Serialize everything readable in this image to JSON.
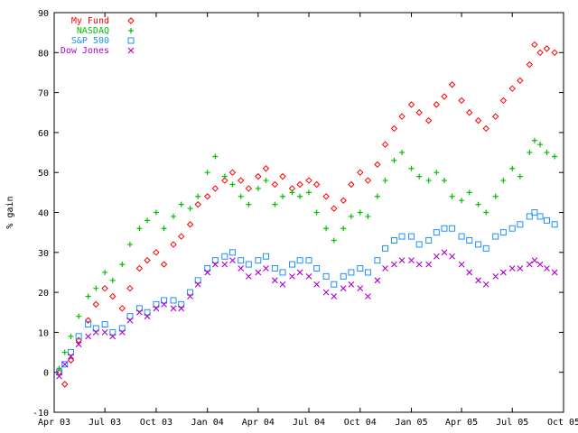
{
  "chart_data": {
    "type": "scatter",
    "ylabel": "% gain",
    "xlabel": "",
    "title": "",
    "ylim": [
      -10,
      90
    ],
    "xlim": [
      "2003-04-01",
      "2005-10-01"
    ],
    "y_ticks": [
      -10,
      0,
      10,
      20,
      30,
      40,
      50,
      60,
      70,
      80,
      90
    ],
    "x_ticks": [
      {
        "date": "2003-04-01",
        "label": "Apr 03"
      },
      {
        "date": "2003-07-01",
        "label": "Jul 03"
      },
      {
        "date": "2003-10-01",
        "label": "Oct 03"
      },
      {
        "date": "2004-01-01",
        "label": "Jan 04"
      },
      {
        "date": "2004-04-01",
        "label": "Apr 04"
      },
      {
        "date": "2004-07-01",
        "label": "Jul 04"
      },
      {
        "date": "2004-10-01",
        "label": "Oct 04"
      },
      {
        "date": "2005-01-01",
        "label": "Jan 05"
      },
      {
        "date": "2005-04-01",
        "label": "Apr 05"
      },
      {
        "date": "2005-07-01",
        "label": "Jul 05"
      },
      {
        "date": "2005-10-01",
        "label": "Oct 05"
      }
    ],
    "grid": false,
    "legend_position": "top-left",
    "series": [
      {
        "name": "My Fund",
        "color": "#ff0000",
        "marker": "diamond",
        "points": [
          [
            "2003-04-10",
            0
          ],
          [
            "2003-04-20",
            -3
          ],
          [
            "2003-05-01",
            3
          ],
          [
            "2003-05-15",
            8
          ],
          [
            "2003-06-01",
            13
          ],
          [
            "2003-06-15",
            17
          ],
          [
            "2003-07-01",
            21
          ],
          [
            "2003-07-15",
            19
          ],
          [
            "2003-08-01",
            16
          ],
          [
            "2003-08-15",
            21
          ],
          [
            "2003-09-01",
            26
          ],
          [
            "2003-09-15",
            28
          ],
          [
            "2003-10-01",
            30
          ],
          [
            "2003-10-15",
            27
          ],
          [
            "2003-11-01",
            32
          ],
          [
            "2003-11-15",
            34
          ],
          [
            "2003-12-01",
            37
          ],
          [
            "2003-12-15",
            42
          ],
          [
            "2004-01-01",
            44
          ],
          [
            "2004-01-15",
            46
          ],
          [
            "2004-02-01",
            48
          ],
          [
            "2004-02-15",
            50
          ],
          [
            "2004-03-01",
            48
          ],
          [
            "2004-03-15",
            46
          ],
          [
            "2004-04-01",
            49
          ],
          [
            "2004-04-15",
            51
          ],
          [
            "2004-05-01",
            47
          ],
          [
            "2004-05-15",
            49
          ],
          [
            "2004-06-01",
            46
          ],
          [
            "2004-06-15",
            47
          ],
          [
            "2004-07-01",
            48
          ],
          [
            "2004-07-15",
            47
          ],
          [
            "2004-08-01",
            44
          ],
          [
            "2004-08-15",
            41
          ],
          [
            "2004-09-01",
            43
          ],
          [
            "2004-09-15",
            47
          ],
          [
            "2004-10-01",
            50
          ],
          [
            "2004-10-15",
            48
          ],
          [
            "2004-11-01",
            52
          ],
          [
            "2004-11-15",
            57
          ],
          [
            "2004-12-01",
            61
          ],
          [
            "2004-12-15",
            64
          ],
          [
            "2005-01-01",
            67
          ],
          [
            "2005-01-15",
            65
          ],
          [
            "2005-02-01",
            63
          ],
          [
            "2005-02-15",
            67
          ],
          [
            "2005-03-01",
            69
          ],
          [
            "2005-03-15",
            72
          ],
          [
            "2005-04-01",
            68
          ],
          [
            "2005-04-15",
            65
          ],
          [
            "2005-05-01",
            63
          ],
          [
            "2005-05-15",
            61
          ],
          [
            "2005-06-01",
            64
          ],
          [
            "2005-06-15",
            68
          ],
          [
            "2005-07-01",
            71
          ],
          [
            "2005-07-15",
            73
          ],
          [
            "2005-08-01",
            77
          ],
          [
            "2005-08-10",
            82
          ],
          [
            "2005-08-20",
            80
          ],
          [
            "2005-09-01",
            81
          ],
          [
            "2005-09-15",
            80
          ]
        ]
      },
      {
        "name": "NASDAQ",
        "color": "#00c000",
        "marker": "plus",
        "points": [
          [
            "2003-04-10",
            1
          ],
          [
            "2003-04-20",
            5
          ],
          [
            "2003-05-01",
            9
          ],
          [
            "2003-05-15",
            14
          ],
          [
            "2003-06-01",
            19
          ],
          [
            "2003-06-15",
            21
          ],
          [
            "2003-07-01",
            25
          ],
          [
            "2003-07-15",
            23
          ],
          [
            "2003-08-01",
            27
          ],
          [
            "2003-08-15",
            32
          ],
          [
            "2003-09-01",
            36
          ],
          [
            "2003-09-15",
            38
          ],
          [
            "2003-10-01",
            40
          ],
          [
            "2003-10-15",
            36
          ],
          [
            "2003-11-01",
            39
          ],
          [
            "2003-11-15",
            42
          ],
          [
            "2003-12-01",
            41
          ],
          [
            "2003-12-15",
            44
          ],
          [
            "2004-01-01",
            50
          ],
          [
            "2004-01-15",
            54
          ],
          [
            "2004-02-01",
            49
          ],
          [
            "2004-02-15",
            47
          ],
          [
            "2004-03-01",
            44
          ],
          [
            "2004-03-15",
            42
          ],
          [
            "2004-04-01",
            46
          ],
          [
            "2004-04-15",
            48
          ],
          [
            "2004-05-01",
            42
          ],
          [
            "2004-05-15",
            44
          ],
          [
            "2004-06-01",
            45
          ],
          [
            "2004-06-15",
            44
          ],
          [
            "2004-07-01",
            45
          ],
          [
            "2004-07-15",
            40
          ],
          [
            "2004-08-01",
            36
          ],
          [
            "2004-08-15",
            33
          ],
          [
            "2004-09-01",
            36
          ],
          [
            "2004-09-15",
            39
          ],
          [
            "2004-10-01",
            40
          ],
          [
            "2004-10-15",
            39
          ],
          [
            "2004-11-01",
            44
          ],
          [
            "2004-11-15",
            48
          ],
          [
            "2004-12-01",
            53
          ],
          [
            "2004-12-15",
            55
          ],
          [
            "2005-01-01",
            51
          ],
          [
            "2005-01-15",
            49
          ],
          [
            "2005-02-01",
            48
          ],
          [
            "2005-02-15",
            50
          ],
          [
            "2005-03-01",
            48
          ],
          [
            "2005-03-15",
            44
          ],
          [
            "2005-04-01",
            43
          ],
          [
            "2005-04-15",
            45
          ],
          [
            "2005-05-01",
            42
          ],
          [
            "2005-05-15",
            40
          ],
          [
            "2005-06-01",
            44
          ],
          [
            "2005-06-15",
            48
          ],
          [
            "2005-07-01",
            51
          ],
          [
            "2005-07-15",
            49
          ],
          [
            "2005-08-01",
            55
          ],
          [
            "2005-08-10",
            58
          ],
          [
            "2005-08-20",
            57
          ],
          [
            "2005-09-01",
            55
          ],
          [
            "2005-09-15",
            54
          ]
        ]
      },
      {
        "name": "S&P 500",
        "color": "#1e90ff",
        "marker": "square",
        "points": [
          [
            "2003-04-10",
            0
          ],
          [
            "2003-04-20",
            2
          ],
          [
            "2003-05-01",
            5
          ],
          [
            "2003-05-15",
            9
          ],
          [
            "2003-06-01",
            12
          ],
          [
            "2003-06-15",
            11
          ],
          [
            "2003-07-01",
            12
          ],
          [
            "2003-07-15",
            10
          ],
          [
            "2003-08-01",
            11
          ],
          [
            "2003-08-15",
            14
          ],
          [
            "2003-09-01",
            16
          ],
          [
            "2003-09-15",
            15
          ],
          [
            "2003-10-01",
            17
          ],
          [
            "2003-10-15",
            18
          ],
          [
            "2003-11-01",
            18
          ],
          [
            "2003-11-15",
            17
          ],
          [
            "2003-12-01",
            20
          ],
          [
            "2003-12-15",
            23
          ],
          [
            "2004-01-01",
            26
          ],
          [
            "2004-01-15",
            28
          ],
          [
            "2004-02-01",
            29
          ],
          [
            "2004-02-15",
            30
          ],
          [
            "2004-03-01",
            28
          ],
          [
            "2004-03-15",
            27
          ],
          [
            "2004-04-01",
            28
          ],
          [
            "2004-04-15",
            29
          ],
          [
            "2004-05-01",
            26
          ],
          [
            "2004-05-15",
            25
          ],
          [
            "2004-06-01",
            27
          ],
          [
            "2004-06-15",
            28
          ],
          [
            "2004-07-01",
            28
          ],
          [
            "2004-07-15",
            26
          ],
          [
            "2004-08-01",
            24
          ],
          [
            "2004-08-15",
            22
          ],
          [
            "2004-09-01",
            24
          ],
          [
            "2004-09-15",
            25
          ],
          [
            "2004-10-01",
            26
          ],
          [
            "2004-10-15",
            25
          ],
          [
            "2004-11-01",
            28
          ],
          [
            "2004-11-15",
            31
          ],
          [
            "2004-12-01",
            33
          ],
          [
            "2004-12-15",
            34
          ],
          [
            "2005-01-01",
            34
          ],
          [
            "2005-01-15",
            32
          ],
          [
            "2005-02-01",
            33
          ],
          [
            "2005-02-15",
            35
          ],
          [
            "2005-03-01",
            36
          ],
          [
            "2005-03-15",
            36
          ],
          [
            "2005-04-01",
            34
          ],
          [
            "2005-04-15",
            33
          ],
          [
            "2005-05-01",
            32
          ],
          [
            "2005-05-15",
            31
          ],
          [
            "2005-06-01",
            34
          ],
          [
            "2005-06-15",
            35
          ],
          [
            "2005-07-01",
            36
          ],
          [
            "2005-07-15",
            37
          ],
          [
            "2005-08-01",
            39
          ],
          [
            "2005-08-10",
            40
          ],
          [
            "2005-08-20",
            39
          ],
          [
            "2005-09-01",
            38
          ],
          [
            "2005-09-15",
            37
          ]
        ]
      },
      {
        "name": "Dow Jones",
        "color": "#b000d0",
        "marker": "cross",
        "points": [
          [
            "2003-04-10",
            -1
          ],
          [
            "2003-04-20",
            2
          ],
          [
            "2003-05-01",
            4
          ],
          [
            "2003-05-15",
            7
          ],
          [
            "2003-06-01",
            9
          ],
          [
            "2003-06-15",
            10
          ],
          [
            "2003-07-01",
            10
          ],
          [
            "2003-07-15",
            9
          ],
          [
            "2003-08-01",
            10
          ],
          [
            "2003-08-15",
            13
          ],
          [
            "2003-09-01",
            15
          ],
          [
            "2003-09-15",
            14
          ],
          [
            "2003-10-01",
            16
          ],
          [
            "2003-10-15",
            17
          ],
          [
            "2003-11-01",
            16
          ],
          [
            "2003-11-15",
            16
          ],
          [
            "2003-12-01",
            19
          ],
          [
            "2003-12-15",
            22
          ],
          [
            "2004-01-01",
            25
          ],
          [
            "2004-01-15",
            27
          ],
          [
            "2004-02-01",
            27
          ],
          [
            "2004-02-15",
            28
          ],
          [
            "2004-03-01",
            26
          ],
          [
            "2004-03-15",
            24
          ],
          [
            "2004-04-01",
            25
          ],
          [
            "2004-04-15",
            26
          ],
          [
            "2004-05-01",
            23
          ],
          [
            "2004-05-15",
            22
          ],
          [
            "2004-06-01",
            24
          ],
          [
            "2004-06-15",
            25
          ],
          [
            "2004-07-01",
            24
          ],
          [
            "2004-07-15",
            22
          ],
          [
            "2004-08-01",
            20
          ],
          [
            "2004-08-15",
            19
          ],
          [
            "2004-09-01",
            21
          ],
          [
            "2004-09-15",
            22
          ],
          [
            "2004-10-01",
            21
          ],
          [
            "2004-10-15",
            19
          ],
          [
            "2004-11-01",
            23
          ],
          [
            "2004-11-15",
            26
          ],
          [
            "2004-12-01",
            27
          ],
          [
            "2004-12-15",
            28
          ],
          [
            "2005-01-01",
            28
          ],
          [
            "2005-01-15",
            27
          ],
          [
            "2005-02-01",
            27
          ],
          [
            "2005-02-15",
            29
          ],
          [
            "2005-03-01",
            30
          ],
          [
            "2005-03-15",
            29
          ],
          [
            "2005-04-01",
            27
          ],
          [
            "2005-04-15",
            25
          ],
          [
            "2005-05-01",
            23
          ],
          [
            "2005-05-15",
            22
          ],
          [
            "2005-06-01",
            24
          ],
          [
            "2005-06-15",
            25
          ],
          [
            "2005-07-01",
            26
          ],
          [
            "2005-07-15",
            26
          ],
          [
            "2005-08-01",
            27
          ],
          [
            "2005-08-10",
            28
          ],
          [
            "2005-08-20",
            27
          ],
          [
            "2005-09-01",
            26
          ],
          [
            "2005-09-15",
            25
          ]
        ]
      }
    ]
  }
}
